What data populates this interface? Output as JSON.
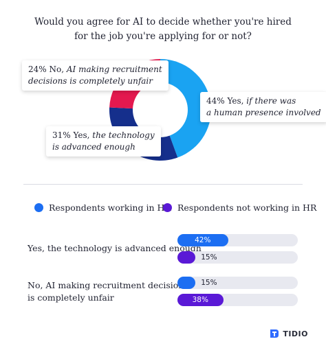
{
  "title_line1": "Would you agree for AI to decide whether you're hired",
  "title_line2": "for the job you're applying for or not?",
  "colors": {
    "donut_blue": "#1aa3f2",
    "donut_navy": "#152f8c",
    "donut_red": "#e4194f",
    "hr_blue": "#1c6ef2",
    "nonhr_purple": "#5a19d6",
    "track": "#e8e9f0"
  },
  "chart_data": [
    {
      "type": "pie",
      "title": "Would you agree for AI to decide whether you're hired for the job you're applying for or not?",
      "categories": [
        "Yes, if there was a human presence involved",
        "Yes, the technology is advanced enough",
        "No, AI making recruitment decisions is completely unfair"
      ],
      "values": [
        44,
        31,
        24
      ]
    },
    {
      "type": "bar",
      "categories": [
        "Yes, the technology is advanced enough",
        "No, AI making recruitment decisions is completely unfair"
      ],
      "series": [
        {
          "name": "Respondents working in HR",
          "values": [
            42,
            15
          ]
        },
        {
          "name": "Respondents not working in HR",
          "values": [
            15,
            38
          ]
        }
      ],
      "ylim": [
        0,
        100
      ]
    }
  ],
  "callouts": {
    "no": {
      "pct": "24%",
      "text1": "No,",
      "text2": "AI making  recruitment",
      "text3": "decisions is completely unfair"
    },
    "yes_human": {
      "pct": "44%",
      "text1": "Yes,",
      "text2": "if there was",
      "text3": "a human presence involved"
    },
    "yes_tech": {
      "pct": "31%",
      "text1": "Yes,",
      "text2": "the technology",
      "text3": "is advanced enough"
    }
  },
  "legend": {
    "hr": "Respondents working in HR",
    "nonhr": "Respondents not working in HR"
  },
  "bars": {
    "row1_label": "Yes, the technology is advanced enough",
    "row2_label_line1": "No, AI making recruitment decisions",
    "row2_label_line2": "is completely unfair",
    "labels": [
      "42%",
      "15%",
      "15%",
      "38%"
    ]
  },
  "logo": {
    "text": "TIDIO",
    "icon": "tidio-logo-icon"
  }
}
